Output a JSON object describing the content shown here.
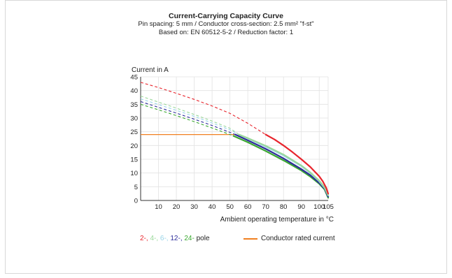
{
  "chart_data": {
    "type": "line",
    "title": "Current-Carrying Capacity Curve",
    "subtitle_lines": [
      "Pin spacing: 5 mm / Conductor cross-section: 2.5 mm² \"f-st\"",
      "Based on: EN 60512-5-2 / Reduction factor: 1"
    ],
    "ylabel": "Current in A",
    "xlabel": "Ambient operating temperature in °C",
    "xlim": [
      0,
      105
    ],
    "ylim": [
      0,
      45
    ],
    "xticks": [
      10,
      20,
      30,
      40,
      50,
      60,
      70,
      80,
      90,
      100,
      105
    ],
    "yticks": [
      0,
      5,
      10,
      15,
      20,
      25,
      30,
      35,
      40,
      45
    ],
    "grid": true,
    "rated_current": {
      "name": "Conductor rated current",
      "color": "#f08020",
      "value": 24,
      "x_end": 53
    },
    "series": [
      {
        "name": "2-",
        "color": "#e8242c",
        "dashed_x": [
          0,
          10,
          20,
          30,
          40,
          50,
          60,
          70
        ],
        "dashed_y": [
          43,
          41.1,
          39.0,
          36.8,
          34.4,
          31.7,
          28.1,
          24
        ],
        "solid_x": [
          70,
          75,
          80,
          85,
          90,
          95,
          100,
          102,
          104,
          105
        ],
        "solid_y": [
          24,
          22.2,
          20.0,
          17.6,
          15.0,
          12.2,
          8.8,
          7.0,
          4.5,
          2.5
        ]
      },
      {
        "name": "4-",
        "color": "#9ad89a",
        "dashed_x": [
          0,
          10,
          20,
          30,
          40,
          50,
          55
        ],
        "dashed_y": [
          38,
          35.8,
          33.6,
          31.3,
          28.9,
          26.3,
          24
        ],
        "solid_x": [
          55,
          60,
          70,
          80,
          90,
          95,
          100,
          103,
          105
        ],
        "solid_y": [
          24,
          22.7,
          19.9,
          16.7,
          12.7,
          10.2,
          7.2,
          4.8,
          2.0
        ]
      },
      {
        "name": "6-",
        "color": "#98d4e8",
        "dashed_x": [
          0,
          10,
          20,
          30,
          40,
          50,
          55
        ],
        "dashed_y": [
          37,
          34.9,
          32.8,
          30.6,
          28.2,
          25.7,
          24
        ],
        "solid_x": [
          55,
          60,
          70,
          80,
          90,
          95,
          100,
          103,
          105
        ],
        "solid_y": [
          24,
          22.6,
          19.6,
          16.4,
          12.5,
          10.0,
          7.0,
          4.6,
          1.8
        ]
      },
      {
        "name": "12-",
        "color": "#2c2c9a",
        "dashed_x": [
          0,
          10,
          20,
          30,
          40,
          50,
          53
        ],
        "dashed_y": [
          36,
          33.9,
          31.8,
          29.6,
          27.3,
          24.8,
          24
        ],
        "solid_x": [
          53,
          60,
          70,
          80,
          90,
          95,
          100,
          103,
          105
        ],
        "solid_y": [
          24,
          21.9,
          18.8,
          15.3,
          11.4,
          9.2,
          6.4,
          4.3,
          1.4
        ]
      },
      {
        "name": "24-",
        "color": "#3aa830",
        "dashed_x": [
          0,
          10,
          20,
          30,
          40,
          50,
          52
        ],
        "dashed_y": [
          35,
          33.0,
          30.9,
          28.7,
          26.4,
          24.0,
          23.5
        ],
        "solid_x": [
          52,
          60,
          70,
          80,
          90,
          95,
          100,
          103,
          105
        ],
        "solid_y": [
          23.5,
          21.2,
          18.0,
          14.6,
          10.9,
          8.7,
          6.1,
          4.0,
          1.0
        ]
      }
    ],
    "legend": {
      "pole_suffix": "pole",
      "pole_entries": [
        {
          "text": "2-,",
          "color": "#e8242c"
        },
        {
          "text": "4-,",
          "color": "#9ad89a"
        },
        {
          "text": "6-,",
          "color": "#98d4e8"
        },
        {
          "text": "12-,",
          "color": "#2c2c9a"
        },
        {
          "text": "24-",
          "color": "#3aa830"
        }
      ]
    }
  }
}
